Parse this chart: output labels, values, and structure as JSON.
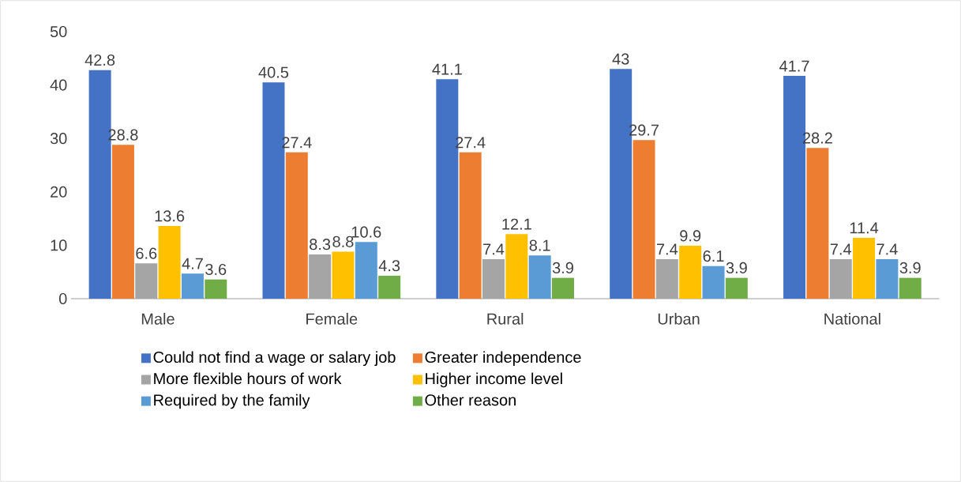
{
  "chart_data": {
    "type": "bar",
    "categories": [
      "Male",
      "Female",
      "Rural",
      "Urban",
      "National"
    ],
    "series": [
      {
        "name": "Could not find a wage or salary job",
        "color": "#4472c4",
        "values": [
          42.8,
          40.5,
          41.1,
          43,
          41.7
        ]
      },
      {
        "name": "Greater independence",
        "color": "#ed7d31",
        "values": [
          28.8,
          27.4,
          27.4,
          29.7,
          28.2
        ]
      },
      {
        "name": "More flexible hours of work",
        "color": "#a5a5a5",
        "values": [
          6.6,
          8.3,
          7.4,
          7.4,
          7.4
        ]
      },
      {
        "name": "Higher income level",
        "color": "#ffc000",
        "values": [
          13.6,
          8.8,
          12.1,
          9.9,
          11.4
        ]
      },
      {
        "name": "Required by the family",
        "color": "#5b9bd5",
        "values": [
          4.7,
          10.6,
          8.1,
          6.1,
          7.4
        ]
      },
      {
        "name": "Other reason",
        "color": "#70ad47",
        "values": [
          3.6,
          4.3,
          3.9,
          3.9,
          3.9
        ]
      }
    ],
    "ylim": [
      0,
      50
    ],
    "yticks": [
      0,
      10,
      20,
      30,
      40,
      50
    ],
    "data_labels": true,
    "legend": "bottom"
  }
}
